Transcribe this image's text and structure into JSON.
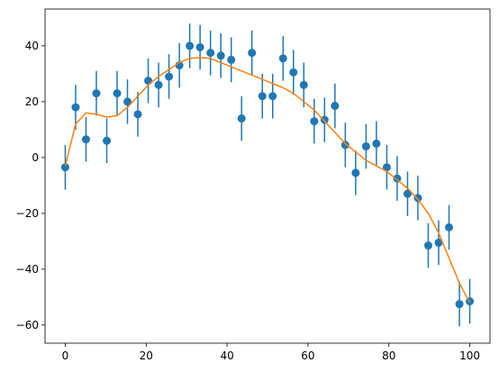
{
  "chart_data": {
    "type": "errorbar",
    "x": [
      0,
      2.56,
      5.13,
      7.69,
      10.26,
      12.82,
      15.38,
      17.95,
      20.51,
      23.08,
      25.64,
      28.21,
      30.77,
      33.33,
      35.9,
      38.46,
      41.03,
      43.59,
      46.15,
      48.72,
      51.28,
      53.85,
      56.41,
      58.97,
      61.54,
      64.1,
      66.67,
      69.23,
      71.79,
      74.36,
      76.92,
      79.49,
      82.05,
      84.62,
      87.18,
      89.74,
      92.31,
      94.87,
      97.44,
      100
    ],
    "series": [
      {
        "kind": "points",
        "color": "#1f77b4",
        "values": [
          -3.5,
          18,
          6.5,
          23,
          6,
          23,
          20,
          15.5,
          27.5,
          26,
          29,
          33,
          40,
          39.5,
          37.5,
          36.5,
          35,
          14,
          37.5,
          22,
          22,
          35.5,
          30.5,
          26,
          13,
          13.5,
          18.5,
          4.5,
          -5.5,
          4,
          5,
          -3.5,
          -7.5,
          -13,
          -14.5,
          -31.5,
          -30.5,
          -25,
          -52.5,
          -51.5
        ],
        "errors": [
          8,
          8,
          8,
          8,
          8,
          8,
          8,
          8,
          8,
          8,
          8,
          8,
          8,
          8,
          8,
          8,
          8,
          8,
          8,
          8,
          8,
          8,
          8,
          8,
          8,
          8,
          8,
          8,
          8,
          8,
          8,
          8,
          8,
          8,
          8,
          8,
          8,
          8,
          8,
          8
        ]
      },
      {
        "kind": "line",
        "color": "#ff7f0e",
        "values": [
          -3,
          12,
          16,
          15.5,
          14.5,
          15,
          18,
          22,
          26,
          29,
          31.5,
          34,
          35.5,
          35.8,
          35.5,
          34,
          32.5,
          31,
          29.5,
          28,
          26.5,
          25,
          23,
          20,
          17,
          13,
          9,
          5,
          2,
          -1,
          -3,
          -5,
          -8,
          -11,
          -15,
          -20,
          -27,
          -36,
          -45,
          -52
        ]
      }
    ],
    "xlim": [
      -5,
      105
    ],
    "ylim": [
      -66.5,
      53.2
    ],
    "xticks": [
      0,
      20,
      40,
      60,
      80,
      100
    ],
    "yticks": [
      {
        "value": -60,
        "label": "−60"
      },
      {
        "value": -40,
        "label": "−40"
      },
      {
        "value": -20,
        "label": "−20"
      },
      0,
      20,
      40
    ]
  }
}
